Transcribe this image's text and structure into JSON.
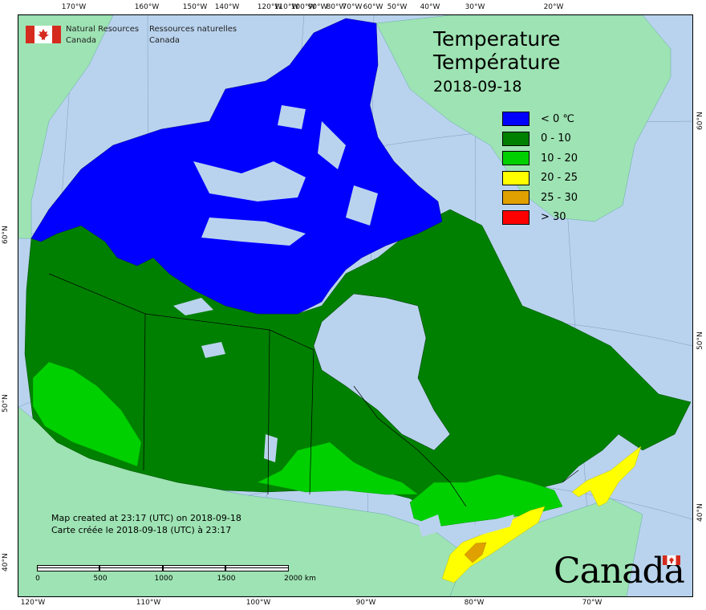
{
  "agency": {
    "en_line1": "Natural Resources",
    "en_line2": "Canada",
    "fr_line1": "Ressources naturelles",
    "fr_line2": "Canada"
  },
  "title": {
    "en": "Temperature",
    "fr": "Température",
    "date": "2018-09-18"
  },
  "legend": [
    {
      "label": "< 0 ℃",
      "color": "#0000ff"
    },
    {
      "label": "0 - 10",
      "color": "#008000"
    },
    {
      "label": "10 - 20",
      "color": "#00d000"
    },
    {
      "label": "20 - 25",
      "color": "#ffff00"
    },
    {
      "label": "25 - 30",
      "color": "#e0a000"
    },
    {
      "label": "> 30",
      "color": "#ff0000"
    }
  ],
  "credit": {
    "en": "Map created at 23:17 (UTC) on 2018-09-18",
    "fr": "Carte créée le 2018-09-18 (UTC) à 23:17"
  },
  "scale": {
    "labels": [
      "0",
      "500",
      "1000",
      "1500",
      "2000 km"
    ]
  },
  "wordmark": "Canada",
  "graticule": {
    "top": [
      "170°W",
      "160°W",
      "150°W",
      "140°W",
      "120°W",
      "110°W",
      "100°W",
      "90°W",
      "80°W",
      "70°W",
      "60°W",
      "50°W",
      "40°W",
      "30°W",
      "20°W"
    ],
    "bottom": [
      "120°W",
      "110°W",
      "100°W",
      "90°W",
      "80°W",
      "70°W"
    ],
    "left": [
      "60°N",
      "50°N",
      "40°N"
    ],
    "right": [
      "60°N",
      "50°N",
      "40°N"
    ]
  },
  "colors": {
    "ocean": "#b9d3ee",
    "land_other": "#9ee3b3",
    "lake": "#b9d3ee"
  }
}
